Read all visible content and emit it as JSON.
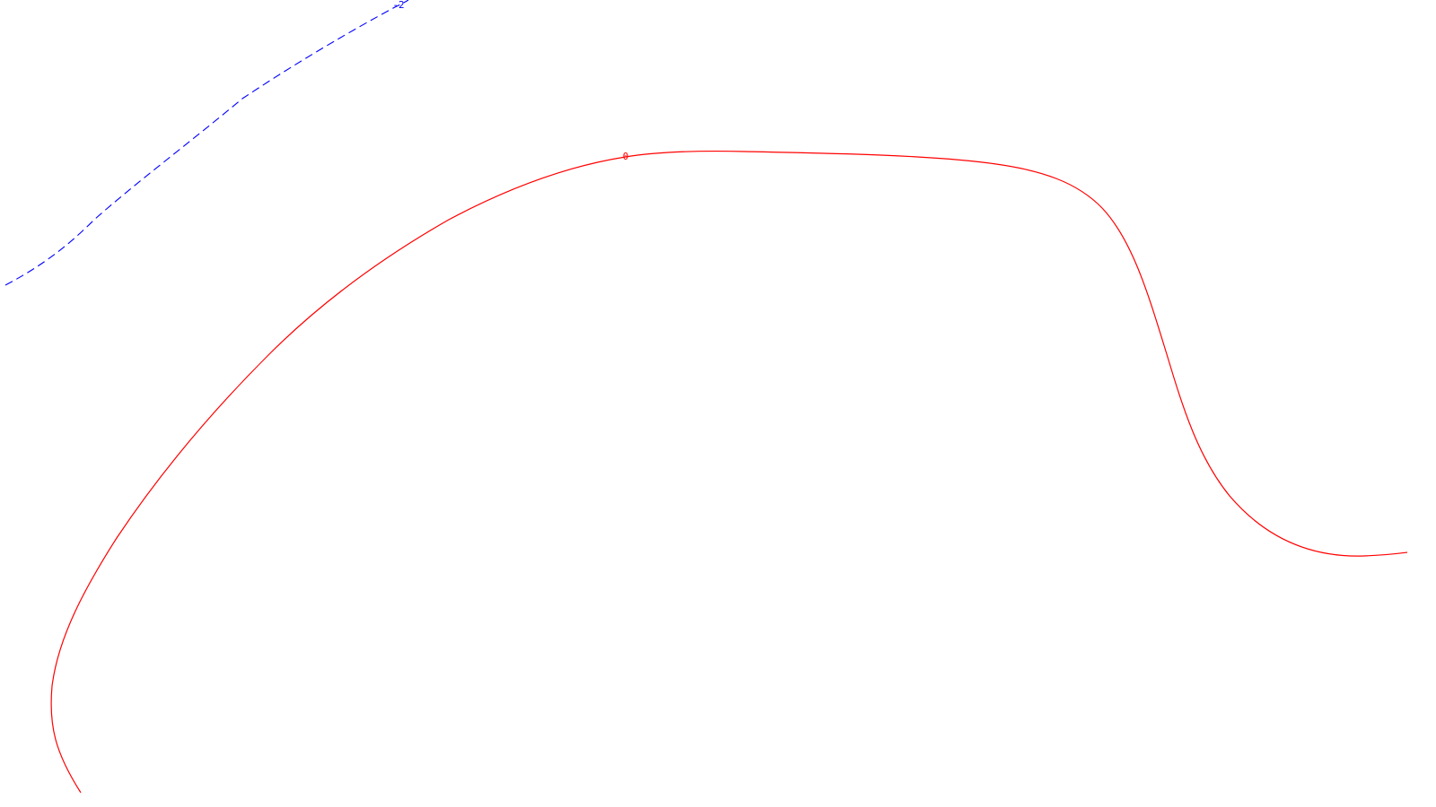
{
  "chart_data": {
    "type": "line",
    "title": "",
    "xlabel": "",
    "ylabel": "",
    "grid": false,
    "contours": [
      {
        "level_label": "0",
        "color": "#ff0000",
        "line_style": "solid"
      },
      {
        "level_label": "-2",
        "color": "#0000ff",
        "line_style": "dashed"
      }
    ]
  }
}
